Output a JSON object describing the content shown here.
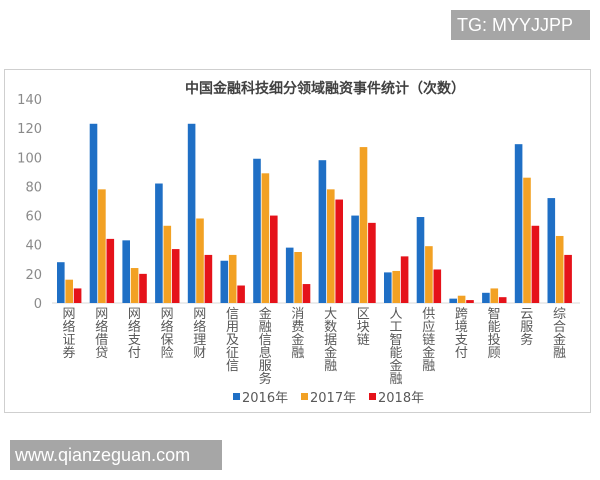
{
  "watermark_top": "TG: MYYJJPP",
  "watermark_bottom": "www.qianzeguan.com",
  "chart_data": {
    "type": "bar",
    "title": "中国金融科技细分领域融资事件统计（次数）",
    "xlabel": "",
    "ylabel": "",
    "ylim": [
      0,
      140
    ],
    "yticks": [
      0,
      20,
      40,
      60,
      80,
      100,
      120,
      140
    ],
    "grid": false,
    "legend_position": "bottom",
    "categories": [
      "网络证券",
      "网络借贷",
      "网络支付",
      "网络保险",
      "网络理财",
      "信用及征信",
      "金融信息服务",
      "消费金融",
      "大数据金融",
      "区块链",
      "人工智能金融",
      "供应链金融",
      "跨境支付",
      "智能投顾",
      "云服务",
      "综合金融"
    ],
    "series": [
      {
        "name": "2016年",
        "color": "#1f6fc5",
        "values": [
          28,
          123,
          43,
          82,
          123,
          29,
          99,
          38,
          98,
          60,
          21,
          59,
          3,
          7,
          109,
          72
        ]
      },
      {
        "name": "2017年",
        "color": "#f2a124",
        "values": [
          16,
          78,
          24,
          53,
          58,
          33,
          89,
          35,
          78,
          107,
          22,
          39,
          5,
          10,
          86,
          46
        ]
      },
      {
        "name": "2018年",
        "color": "#e5121a",
        "values": [
          10,
          44,
          20,
          37,
          33,
          12,
          60,
          13,
          71,
          55,
          32,
          23,
          2,
          4,
          53,
          33
        ]
      }
    ]
  }
}
